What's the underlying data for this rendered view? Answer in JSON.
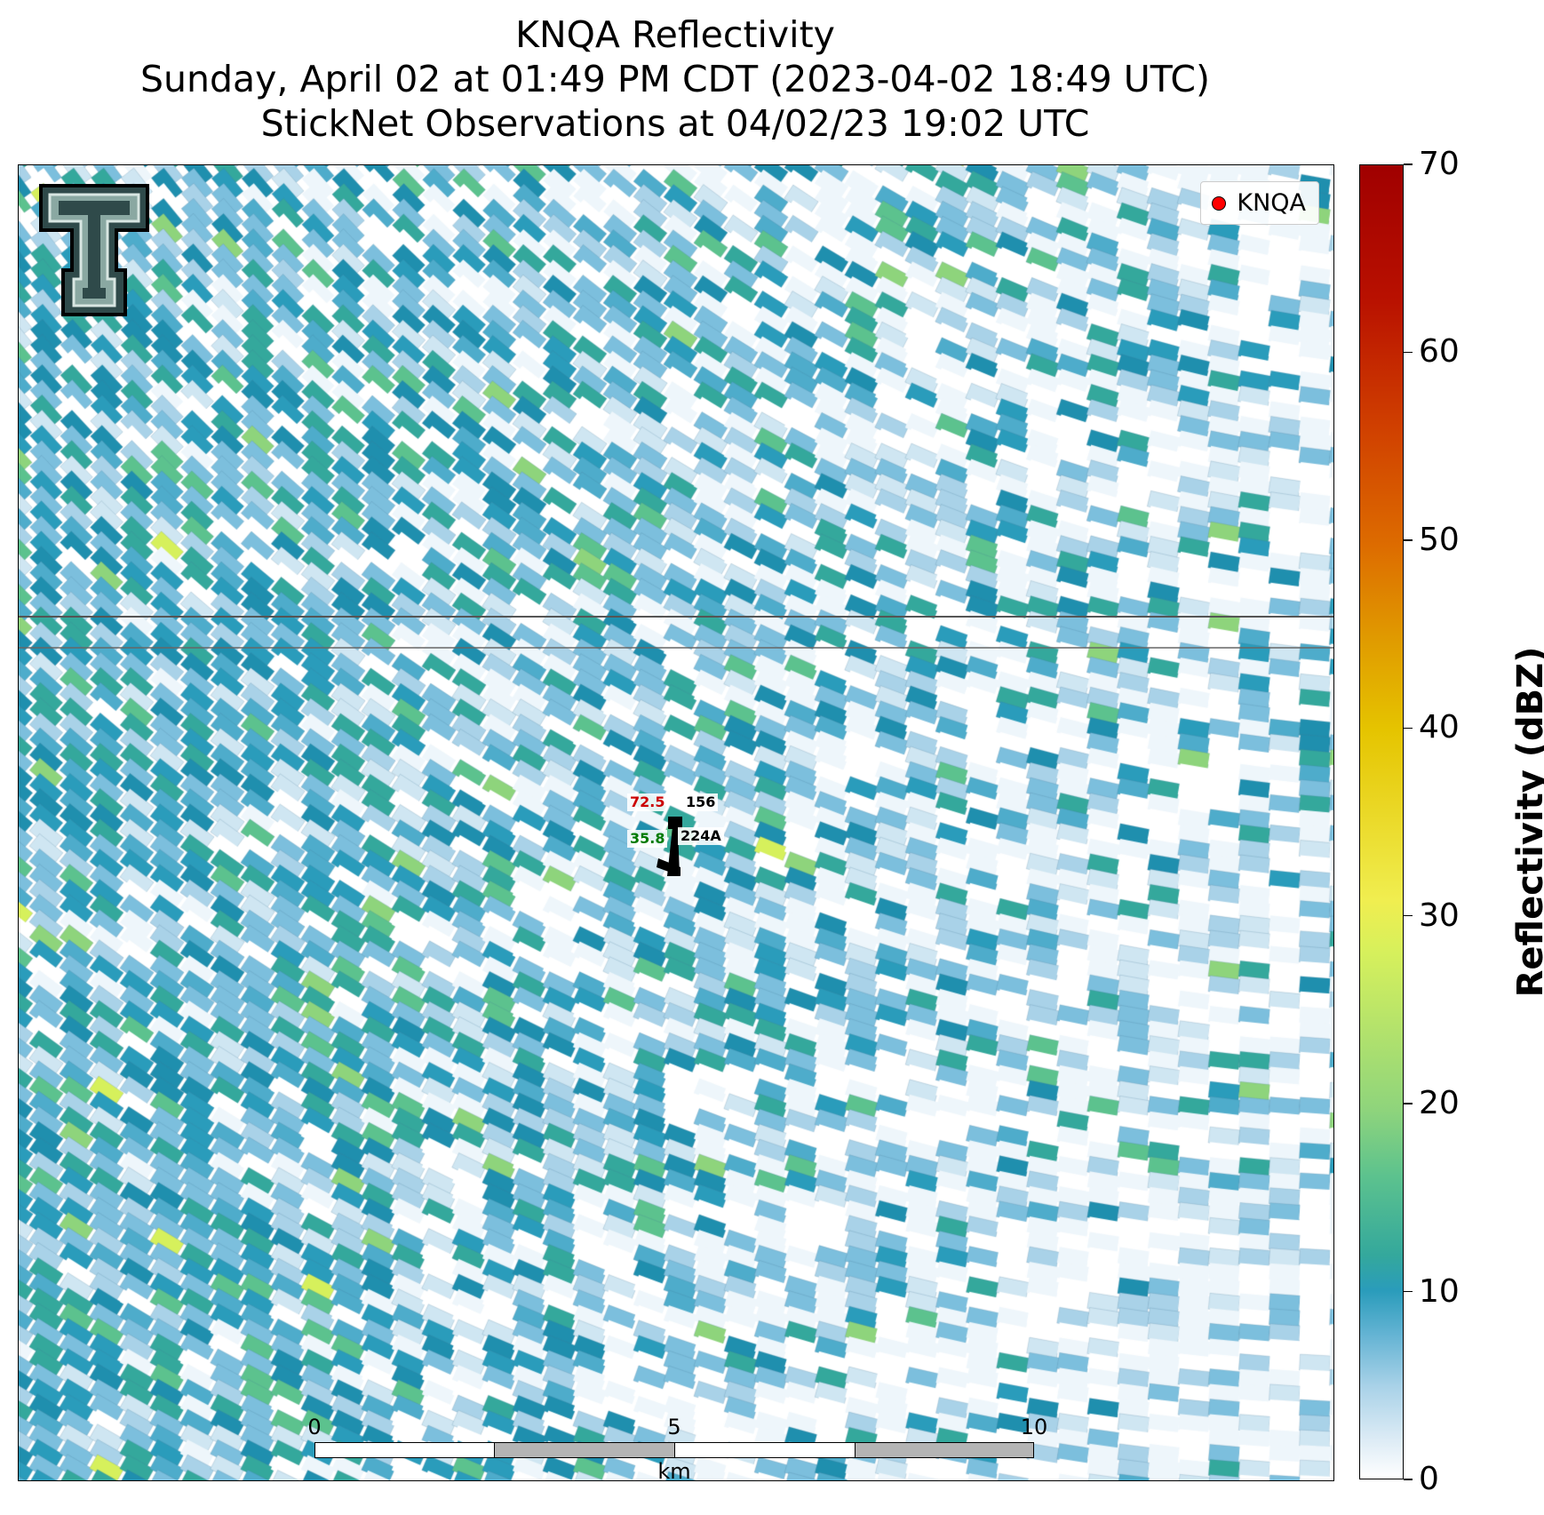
{
  "title": {
    "line1": "KNQA Reflectivity",
    "line2": "Sunday, April 02 at 01:49 PM CDT (2023-04-02 18:49 UTC)",
    "line3": "StickNet Observations at 04/02/23 19:02 UTC"
  },
  "legend": {
    "label": "KNQA",
    "marker_color": "#ff0000"
  },
  "observations": {
    "temperature": {
      "value": "72.5",
      "color": "#cc0000"
    },
    "dewpoint": {
      "value": "35.8",
      "color": "#007a00"
    },
    "station_top": "156",
    "station_bottom": "224A"
  },
  "scalebar": {
    "ticks": [
      "0",
      "5",
      "10"
    ],
    "unit": "km"
  },
  "colorbar": {
    "label": "Reflectivity (dBZ)",
    "ticks": [
      "0",
      "10",
      "20",
      "30",
      "40",
      "50",
      "60",
      "70"
    ],
    "min": 0,
    "max": 70
  },
  "colors": {
    "reflectivity_stops": [
      "#ffffff",
      "#a9d2e8",
      "#2a9cbb",
      "#5cc28e",
      "#f0ee50",
      "#e09a00",
      "#a00000"
    ]
  }
}
